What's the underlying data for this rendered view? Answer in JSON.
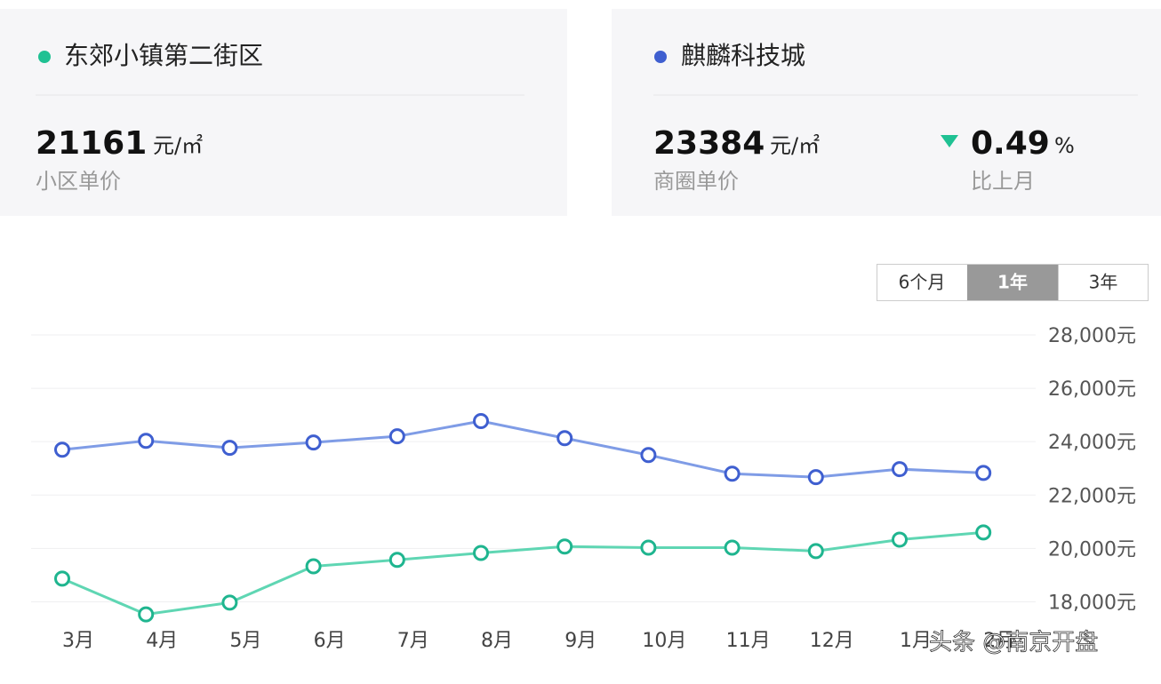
{
  "cards": [
    {
      "name": "东郊小镇第二街区",
      "price": 21161,
      "unit": "元/㎡",
      "label": "小区单价"
    },
    {
      "name": "麒麟科技城",
      "price": 23384,
      "unit": "元/㎡",
      "label": "商圈单价",
      "change": {
        "value": 0.49,
        "unit": "%",
        "label": "比上月"
      }
    }
  ],
  "tabs": [
    "6个月",
    "1年",
    "3年"
  ],
  "watermark": "头条 @南京开盘",
  "chart_data": {
    "type": "line",
    "categories": [
      "3月",
      "4月",
      "5月",
      "6月",
      "7月",
      "8月",
      "9月",
      "10月",
      "11月",
      "12月",
      "1月",
      "2月"
    ],
    "series": [
      {
        "name": "麒麟科技城",
        "color": "#3f5fd0",
        "values": [
          23700,
          24030,
          23770,
          23970,
          24200,
          24770,
          24130,
          23500,
          22800,
          22670,
          22970,
          22830
        ]
      },
      {
        "name": "东郊小镇第二街区",
        "color": "#1fb58f",
        "values": [
          18870,
          17530,
          17970,
          19330,
          19570,
          19830,
          20070,
          20030,
          20030,
          19900,
          20330,
          20600
        ]
      }
    ],
    "ylim": [
      17250,
      28000
    ],
    "yticks": [
      {
        "value": 18000,
        "label": "18,000元"
      },
      {
        "value": 20000,
        "label": "20,000元"
      },
      {
        "value": 22000,
        "label": "22,000元"
      },
      {
        "value": 24000,
        "label": "24,000元"
      },
      {
        "value": 26000,
        "label": "26,000元"
      },
      {
        "value": 28000,
        "label": "28,000元"
      }
    ],
    "grid": true
  }
}
